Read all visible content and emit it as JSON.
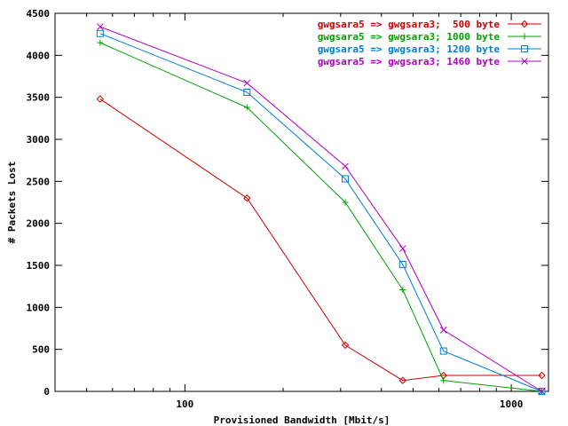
{
  "chart_data": {
    "type": "line",
    "xlabel": "Provisioned Bandwidth [Mbit/s]",
    "ylabel": "# Packets Lost",
    "xscale": "log",
    "xlim": [
      40,
      1300
    ],
    "ylim": [
      0,
      4500
    ],
    "xticks": [
      {
        "value": 100,
        "label": "100"
      },
      {
        "value": 1000,
        "label": "1000"
      }
    ],
    "yticks": [
      {
        "value": 0,
        "label": "0"
      },
      {
        "value": 500,
        "label": "500"
      },
      {
        "value": 1000,
        "label": "1000"
      },
      {
        "value": 1500,
        "label": "1500"
      },
      {
        "value": 2000,
        "label": "2000"
      },
      {
        "value": 2500,
        "label": "2500"
      },
      {
        "value": 3000,
        "label": "3000"
      },
      {
        "value": 3500,
        "label": "3500"
      },
      {
        "value": 4000,
        "label": "4000"
      },
      {
        "value": 4500,
        "label": "4500"
      }
    ],
    "grid": false,
    "legend_position": "top-right",
    "series": [
      {
        "name": "gwgsara5 => gwgsara3;  500 byte",
        "color": "#cc0000",
        "marker": "diamond",
        "x": [
          55,
          155,
          310,
          465,
          620,
          1240
        ],
        "y": [
          3480,
          2300,
          550,
          130,
          190,
          190
        ]
      },
      {
        "name": "gwgsara5 => gwgsara3; 1000 byte",
        "color": "#00a000",
        "marker": "plus",
        "x": [
          55,
          155,
          310,
          465,
          620,
          1240
        ],
        "y": [
          4150,
          3380,
          2250,
          1210,
          130,
          0
        ]
      },
      {
        "name": "gwgsara5 => gwgsara3; 1200 byte",
        "color": "#0080d0",
        "marker": "square",
        "x": [
          55,
          155,
          310,
          465,
          620,
          1240
        ],
        "y": [
          4260,
          3560,
          2530,
          1510,
          480,
          0
        ]
      },
      {
        "name": "gwgsara5 => gwgsara3; 1460 byte",
        "color": "#b000c0",
        "marker": "cross",
        "x": [
          55,
          155,
          310,
          465,
          620,
          1240
        ],
        "y": [
          4340,
          3670,
          2680,
          1700,
          730,
          0
        ]
      }
    ]
  }
}
